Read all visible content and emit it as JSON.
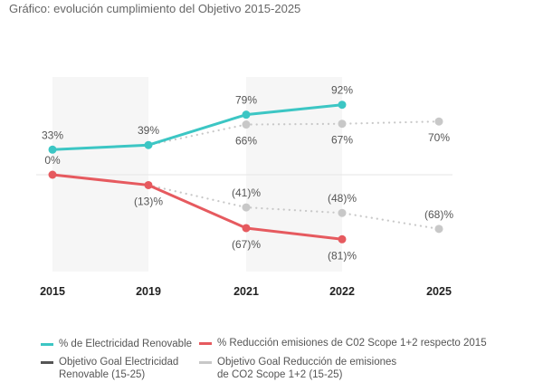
{
  "title": "Gráfico: evolución cumplimiento del Objetivo 2015-2025",
  "chart_data": {
    "type": "line",
    "title": "Gráfico: evolución cumplimiento del Objetivo 2015-2025",
    "xlabel": "",
    "ylabel": "",
    "x": [
      "2015",
      "2019",
      "2021",
      "2022",
      "2025"
    ],
    "ylim": [
      -100,
      100
    ],
    "grid": false,
    "shaded_periods": [
      [
        "2015",
        "2019"
      ],
      [
        "2021",
        "2022"
      ]
    ],
    "legend_position": "bottom",
    "series": [
      {
        "name": "% de Electricidad Renovable",
        "color": "#3cc6c4",
        "style": "solid",
        "values": [
          33,
          39,
          79,
          92,
          null
        ],
        "labels": [
          "33%",
          "39%",
          "79%",
          "92%",
          ""
        ]
      },
      {
        "name": "% Reducción emisiones de C02 Scope 1+2 respecto 2015",
        "color": "#e65a5f",
        "style": "solid",
        "values": [
          0,
          -13,
          -67,
          -81,
          null
        ],
        "labels": [
          "0%",
          "(13)%",
          "(67)%",
          "(81)%",
          ""
        ]
      },
      {
        "name": "Objetivo Goal Electricidad Renovable (15-25)",
        "color": "#c8c8c8",
        "legend_color": "#555555",
        "style": "dotted",
        "values": [
          null,
          39,
          66,
          67,
          70
        ],
        "labels": [
          "",
          "",
          "66%",
          "67%",
          "70%"
        ]
      },
      {
        "name": "Objetivo Goal Reducción de emisiones de CO2 Scope 1+2  (15-25)",
        "color": "#c8c8c8",
        "legend_color": "#c8c8c8",
        "style": "dotted",
        "values": [
          null,
          -13,
          -41,
          -48,
          -68
        ],
        "labels": [
          "",
          "",
          "(41)%",
          "(48)%",
          "(68)%"
        ]
      }
    ]
  },
  "legend": [
    {
      "label": "% de Electricidad Renovable",
      "color": "#3cc6c4"
    },
    {
      "label": "% Reducción emisiones de C02 Scope 1+2 respecto 2015",
      "color": "#e65a5f"
    },
    {
      "label_line1": "Objetivo Goal Electricidad",
      "label_line2": "Renovable (15-25)",
      "color": "#555555"
    },
    {
      "label_line1": "Objetivo Goal Reducción de emisiones",
      "label_line2": "de CO2 Scope 1+2  (15-25)",
      "color": "#c8c8c8"
    }
  ]
}
